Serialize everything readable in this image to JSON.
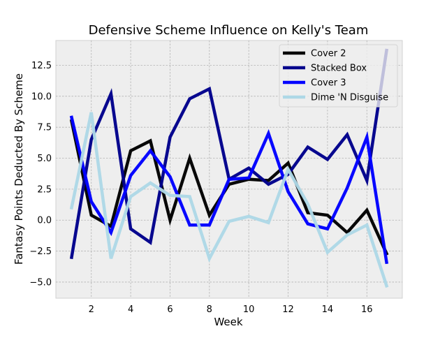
{
  "chart_data": {
    "type": "line",
    "title": "Defensive Scheme Influence on Kelly's Team",
    "xlabel": "Week",
    "ylabel": "Fantasy Points Deducted By Scheme",
    "xlim": [
      0.2,
      17.8
    ],
    "ylim": [
      -6.3,
      14.5
    ],
    "xticks": [
      2,
      4,
      6,
      8,
      10,
      12,
      14,
      16
    ],
    "yticks": [
      -5.0,
      -2.5,
      0.0,
      2.5,
      5.0,
      7.5,
      10.0,
      12.5
    ],
    "ytick_labels": [
      "−5.0",
      "−2.5",
      "0.0",
      "2.5",
      "5.0",
      "7.5",
      "10.0",
      "12.5"
    ],
    "grid": true,
    "legend_position": "top-right",
    "x": [
      1,
      2,
      3,
      4,
      5,
      6,
      7,
      8,
      9,
      10,
      11,
      12,
      13,
      14,
      15,
      16,
      17
    ],
    "series": [
      {
        "name": "Cover 2",
        "color": "#000000",
        "values": [
          8.0,
          0.4,
          -0.5,
          5.6,
          6.4,
          0.0,
          5.0,
          0.4,
          2.9,
          3.3,
          3.2,
          4.6,
          0.6,
          0.4,
          -1.0,
          0.8,
          -2.7
        ]
      },
      {
        "name": "Stacked Box",
        "color": "#00008b",
        "values": [
          -3.0,
          6.5,
          10.2,
          -0.7,
          -1.8,
          6.7,
          9.8,
          10.6,
          3.3,
          4.2,
          2.9,
          3.7,
          5.9,
          4.9,
          6.9,
          3.2,
          13.7
        ]
      },
      {
        "name": "Cover 3",
        "color": "#0000ff",
        "values": [
          8.3,
          1.5,
          -1.0,
          3.6,
          5.6,
          3.5,
          -0.4,
          -0.4,
          3.3,
          3.4,
          7.0,
          2.3,
          -0.3,
          -0.7,
          2.6,
          6.7,
          -3.4
        ]
      },
      {
        "name": "Dime 'N Disguise",
        "color": "#add8e6",
        "values": [
          1.0,
          8.7,
          -3.1,
          1.9,
          3.0,
          2.0,
          1.9,
          -3.1,
          -0.1,
          0.3,
          -0.2,
          4.1,
          1.3,
          -2.6,
          -1.2,
          -0.4,
          -5.3
        ]
      }
    ]
  }
}
